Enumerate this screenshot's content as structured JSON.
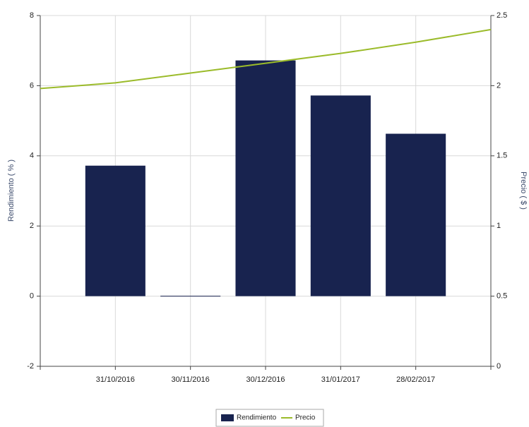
{
  "chart_data": {
    "type": "bar-line",
    "categories": [
      null,
      "31/10/2016",
      "30/11/2016",
      "30/12/2016",
      "31/01/2017",
      "28/02/2017",
      null
    ],
    "series": [
      {
        "name": "Rendimiento",
        "color": "#18234f",
        "type": "bar",
        "values": [
          null,
          3.72,
          0.01,
          6.72,
          5.72,
          4.63,
          null
        ]
      },
      {
        "name": "Precio",
        "color": "#9bbb2a",
        "type": "line",
        "axis": "y2",
        "values": [
          1.98,
          2.02,
          2.09,
          2.16,
          2.23,
          2.31,
          2.4
        ]
      }
    ],
    "ylabel": "Rendimiento ( % )",
    "y2label": "Precio ( $ )",
    "ylim": [
      -2,
      8
    ],
    "yticks": [
      -2,
      0,
      2,
      4,
      6,
      8
    ],
    "y2lim": [
      0,
      2.5
    ],
    "y2ticks": [
      0,
      0.5,
      1,
      1.5,
      2,
      2.5
    ],
    "grid": true,
    "legend": "bottom"
  }
}
